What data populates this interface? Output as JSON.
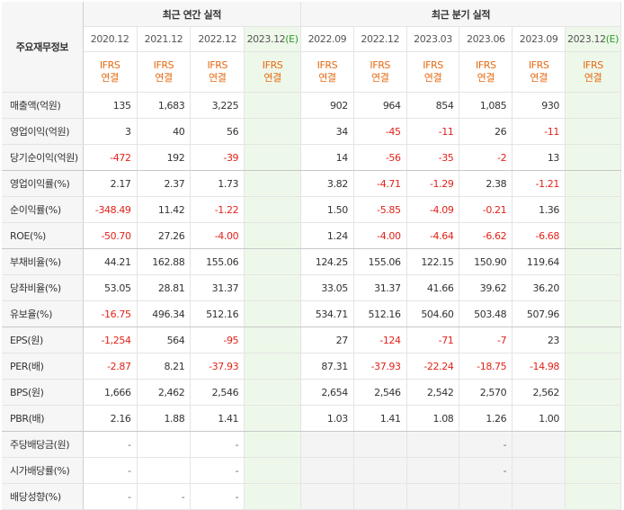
{
  "table_title": "주요재무정보",
  "groups": {
    "annual": "최근 연간 실적",
    "quarterly": "최근 분기 실적"
  },
  "columns": [
    {
      "period": "2020.12",
      "est": "",
      "std": "IFRS",
      "basis": "연결"
    },
    {
      "period": "2021.12",
      "est": "",
      "std": "IFRS",
      "basis": "연결"
    },
    {
      "period": "2022.12",
      "est": "",
      "std": "IFRS",
      "basis": "연결"
    },
    {
      "period": "2023.12",
      "est": "(E)",
      "std": "IFRS",
      "basis": "연결"
    },
    {
      "period": "2022.09",
      "est": "",
      "std": "IFRS",
      "basis": "연결"
    },
    {
      "period": "2022.12",
      "est": "",
      "std": "IFRS",
      "basis": "연결"
    },
    {
      "period": "2023.03",
      "est": "",
      "std": "IFRS",
      "basis": "연결"
    },
    {
      "period": "2023.06",
      "est": "",
      "std": "IFRS",
      "basis": "연결"
    },
    {
      "period": "2023.09",
      "est": "",
      "std": "IFRS",
      "basis": "연결"
    },
    {
      "period": "2023.12",
      "est": "(E)",
      "std": "IFRS",
      "basis": "연결"
    }
  ],
  "rows": [
    {
      "label": "매출액(억원)",
      "values": [
        "135",
        "1,683",
        "3,225",
        "",
        "902",
        "964",
        "854",
        "1,085",
        "930",
        ""
      ]
    },
    {
      "label": "영업이익(억원)",
      "values": [
        "3",
        "40",
        "56",
        "",
        "34",
        "-45",
        "-11",
        "26",
        "-11",
        ""
      ]
    },
    {
      "label": "당기순이익(억원)",
      "values": [
        "-472",
        "192",
        "-39",
        "",
        "14",
        "-56",
        "-35",
        "-2",
        "13",
        ""
      ]
    },
    {
      "label": "영업이익률(%)",
      "values": [
        "2.17",
        "2.37",
        "1.73",
        "",
        "3.82",
        "-4.71",
        "-1.29",
        "2.38",
        "-1.21",
        ""
      ]
    },
    {
      "label": "순이익률(%)",
      "values": [
        "-348.49",
        "11.42",
        "-1.22",
        "",
        "1.50",
        "-5.85",
        "-4.09",
        "-0.21",
        "1.36",
        ""
      ]
    },
    {
      "label": "ROE(%)",
      "values": [
        "-50.70",
        "27.26",
        "-4.00",
        "",
        "1.24",
        "-4.00",
        "-4.64",
        "-6.62",
        "-6.68",
        ""
      ]
    },
    {
      "label": "부채비율(%)",
      "values": [
        "44.21",
        "162.88",
        "155.06",
        "",
        "124.25",
        "155.06",
        "122.15",
        "150.90",
        "119.64",
        ""
      ]
    },
    {
      "label": "당좌비율(%)",
      "values": [
        "53.05",
        "28.81",
        "31.37",
        "",
        "33.05",
        "31.37",
        "41.66",
        "39.62",
        "36.20",
        ""
      ]
    },
    {
      "label": "유보율(%)",
      "values": [
        "-16.75",
        "496.34",
        "512.16",
        "",
        "534.71",
        "512.16",
        "504.60",
        "503.48",
        "507.96",
        ""
      ]
    },
    {
      "label": "EPS(원)",
      "values": [
        "-1,254",
        "564",
        "-95",
        "",
        "27",
        "-124",
        "-71",
        "-7",
        "23",
        ""
      ]
    },
    {
      "label": "PER(배)",
      "values": [
        "-2.87",
        "8.21",
        "-37.93",
        "",
        "87.31",
        "-37.93",
        "-22.24",
        "-18.75",
        "-14.98",
        ""
      ]
    },
    {
      "label": "BPS(원)",
      "values": [
        "1,666",
        "2,462",
        "2,546",
        "",
        "2,654",
        "2,546",
        "2,542",
        "2,570",
        "2,562",
        ""
      ]
    },
    {
      "label": "PBR(배)",
      "values": [
        "2.16",
        "1.88",
        "1.41",
        "",
        "1.03",
        "1.41",
        "1.08",
        "1.26",
        "1.00",
        ""
      ]
    },
    {
      "label": "주당배당금(원)",
      "values": [
        "-",
        "",
        "-",
        "",
        "",
        "",
        "",
        "-",
        "",
        ""
      ]
    },
    {
      "label": "시가배당률(%)",
      "values": [
        "-",
        "",
        "-",
        "",
        "",
        "",
        "",
        "-",
        "",
        ""
      ]
    },
    {
      "label": "배당성향(%)",
      "values": [
        "-",
        "-",
        "-",
        "",
        "",
        "",
        "",
        "",
        "",
        ""
      ]
    }
  ],
  "colors": {
    "negative": "#e2231a",
    "ifrs": "#e66a12",
    "estimate_bg": "#eef8ea",
    "estimate_badge": "#2b9b2b"
  }
}
